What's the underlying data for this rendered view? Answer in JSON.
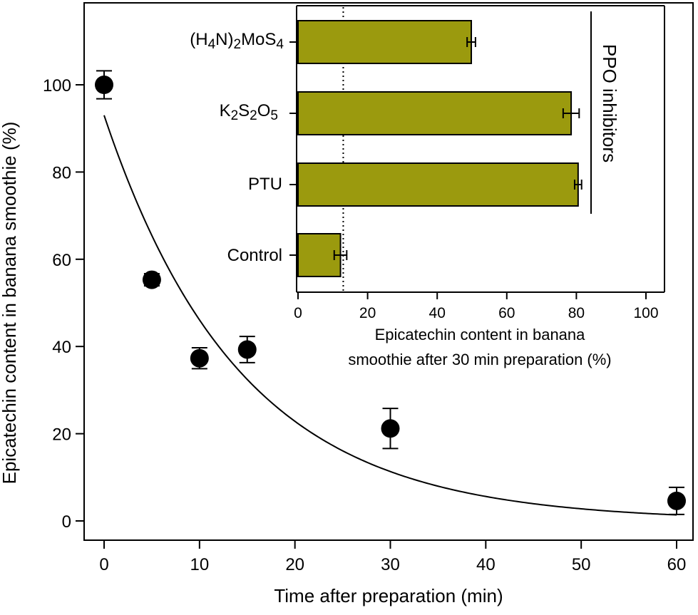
{
  "chart_data": [
    {
      "type": "scatter",
      "title": "",
      "xlabel": "Time after preparation (min)",
      "ylabel": "Epicatechin content in banana smoothie (%)",
      "xlim": [
        -1.5,
        61.5
      ],
      "ylim": [
        -3,
        118
      ],
      "xticks": [
        0,
        10,
        20,
        30,
        40,
        50,
        60
      ],
      "yticks": [
        0,
        20,
        40,
        60,
        80,
        100
      ],
      "grid": false,
      "x": [
        0,
        5,
        10,
        15,
        30,
        60
      ],
      "y": [
        100,
        55.3,
        37.3,
        39.3,
        21.2,
        4.6
      ],
      "error": [
        3.2,
        1.4,
        2.4,
        3.0,
        4.6,
        3.1
      ],
      "fit": {
        "type": "exponential-decay",
        "x_start": 0,
        "x_end": 60,
        "a": 93,
        "k": 0.0702,
        "y_start": 93,
        "y_end": 1.4
      }
    },
    {
      "type": "bar",
      "orientation": "horizontal",
      "title": "",
      "xlabel_line1": "Epicatechin content in banana",
      "xlabel_line2": "smoothie after 30 min preparation (%)",
      "xlim": [
        0,
        105
      ],
      "xticks": [
        0,
        20,
        40,
        60,
        80,
        100
      ],
      "categories": [
        "Control",
        "PTU",
        "K2S2O5",
        "(H4N)2MoS4"
      ],
      "values": [
        12.2,
        80.5,
        78.5,
        49.8
      ],
      "error": [
        1.8,
        1.0,
        2.3,
        1.2
      ],
      "bar_color": "#9b9a0e",
      "reference_line": 13,
      "bracket_label": "PPO inhibitors",
      "bracket_categories": [
        "PTU",
        "K2S2O5",
        "(H4N)2MoS4"
      ]
    }
  ]
}
